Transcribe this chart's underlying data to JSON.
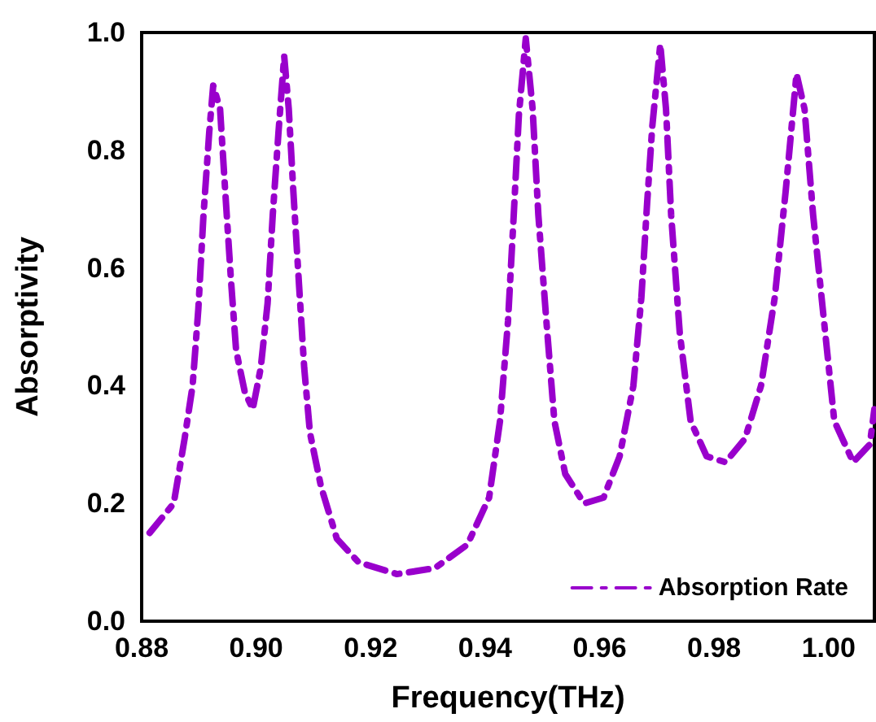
{
  "chart_data": {
    "type": "line",
    "xlabel": "Frequency(THz)",
    "ylabel": "Absorptivity",
    "xlim": [
      0.88,
      1.008
    ],
    "xticks": [
      {
        "value": 0.88,
        "label": "0.88"
      },
      {
        "value": 0.9,
        "label": "0.90"
      },
      {
        "value": 0.92,
        "label": "0.92"
      },
      {
        "value": 0.94,
        "label": "0.94"
      },
      {
        "value": 0.96,
        "label": "0.96"
      },
      {
        "value": 0.98,
        "label": "0.98"
      },
      {
        "value": 1,
        "label": "1.00"
      }
    ],
    "ylim": [
      0,
      1
    ],
    "yticks": [
      {
        "value": 0,
        "label": "0.0"
      },
      {
        "value": 0.2,
        "label": "0.2"
      },
      {
        "value": 0.4,
        "label": "0.4"
      },
      {
        "value": 0.6,
        "label": "0.6"
      },
      {
        "value": 0.8,
        "label": "0.8"
      },
      {
        "value": 1,
        "label": "1.0"
      }
    ],
    "grid": false,
    "legend": "bottom right",
    "line_style": "dashed",
    "marker": "none",
    "series": [
      {
        "name": "Absorption Rate",
        "color": "#9900cc",
        "x": [
          0.8814,
          0.8856,
          0.8875,
          0.8889,
          0.8899,
          0.8908,
          0.8918,
          0.8925,
          0.8937,
          0.8946,
          0.8956,
          0.8965,
          0.898,
          0.8994,
          0.9008,
          0.902,
          0.9029,
          0.9039,
          0.9049,
          0.9057,
          0.9065,
          0.9075,
          0.9084,
          0.9094,
          0.9113,
          0.9141,
          0.9179,
          0.9246,
          0.9312,
          0.9369,
          0.9407,
          0.9426,
          0.944,
          0.945,
          0.9459,
          0.9471,
          0.9483,
          0.9493,
          0.9507,
          0.9521,
          0.954,
          0.9573,
          0.9607,
          0.9635,
          0.9659,
          0.9673,
          0.9683,
          0.9692,
          0.9706,
          0.9716,
          0.9725,
          0.974,
          0.9759,
          0.9787,
          0.982,
          0.9854,
          0.9882,
          0.9906,
          0.9925,
          0.9944,
          0.9958,
          0.9973,
          0.9992,
          1.001,
          1.0043,
          1.0072,
          1.008
        ],
        "values": [
          0.15,
          0.2,
          0.31,
          0.4,
          0.53,
          0.69,
          0.83,
          0.91,
          0.87,
          0.73,
          0.58,
          0.46,
          0.39,
          0.36,
          0.43,
          0.54,
          0.69,
          0.83,
          0.96,
          0.87,
          0.73,
          0.57,
          0.43,
          0.32,
          0.23,
          0.14,
          0.1,
          0.08,
          0.09,
          0.13,
          0.21,
          0.34,
          0.51,
          0.69,
          0.86,
          0.99,
          0.87,
          0.69,
          0.51,
          0.34,
          0.25,
          0.2,
          0.21,
          0.28,
          0.4,
          0.55,
          0.71,
          0.84,
          0.98,
          0.87,
          0.69,
          0.49,
          0.34,
          0.28,
          0.27,
          0.31,
          0.4,
          0.55,
          0.73,
          0.93,
          0.87,
          0.69,
          0.51,
          0.34,
          0.27,
          0.3,
          0.36
        ]
      }
    ]
  }
}
